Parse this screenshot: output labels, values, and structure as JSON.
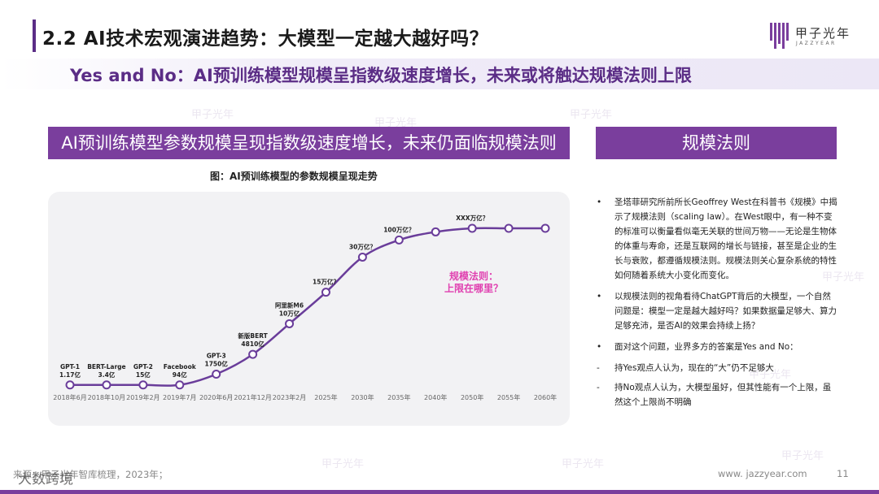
{
  "header": {
    "title": "2.2 AI技术宏观演进趋势：大模型一定越大越好吗？",
    "subtitle": "Yes and No：AI预训练模型规模呈指数级速度增长，未来或将触达规模法则上限"
  },
  "logo": {
    "cn": "甲子光年",
    "en": "JAZZYEAR"
  },
  "left_section": {
    "heading": "AI预训练模型参数规模呈现指数级速度增长，未来仍面临规模法则"
  },
  "right_section": {
    "heading": "规模法则"
  },
  "chart_data": {
    "type": "line",
    "title": "图：AI预训练模型的参数规模呈现走势",
    "categories": [
      "2018年6月",
      "2018年10月",
      "2019年2月",
      "2019年7月",
      "2020年6月",
      "2021年12月",
      "2023年2月",
      "2025年",
      "2030年",
      "2035年",
      "2040年",
      "2050年",
      "2055年",
      "2060年"
    ],
    "series": [
      {
        "values": [
          0.2,
          0.2,
          0.2,
          0.2,
          1.4,
          3.6,
          7.0,
          10.5,
          14.4,
          16.3,
          17.2,
          17.6,
          17.6,
          17.6
        ]
      }
    ],
    "point_labels": [
      [
        "GPT-1",
        "1.17亿"
      ],
      [
        "BERT-Large",
        "3.4亿"
      ],
      [
        "GPT-2",
        "15亿"
      ],
      [
        "Facebook",
        "94亿"
      ],
      [
        "GPT-3",
        "1750亿"
      ],
      [
        "新版BERT",
        "4810亿"
      ],
      [
        "阿里新M6",
        "10万亿"
      ],
      [
        "15万亿？"
      ],
      [
        "30万亿？"
      ],
      [
        "100万亿？"
      ],
      [],
      [
        "XXX万亿？"
      ],
      [],
      []
    ],
    "annotation": [
      "规模法则：",
      "上限在哪里？"
    ],
    "grid": false,
    "legend": "none",
    "color": "#6a3d9a",
    "annotation_color": "#e040b0"
  },
  "bullets": [
    {
      "mark": "•",
      "text": "圣塔菲研究所前所长Geoffrey West在科普书《规模》中揭示了规模法则（scaling law）。在West眼中，有一种不变的标准可以衡量看似毫无关联的世间万物——无论是生物体的体重与寿命，还是互联网的增长与链接，甚至是企业的生长与衰败，都遵循规模法则。规模法则关心复杂系统的特性如何随着系统大小变化而变化。"
    },
    {
      "mark": "•",
      "text": "以规模法则的视角看待ChatGPT背后的大模型，一个自然问题是：模型一定是越大越好吗？如果数据量足够大、算力足够充沛，是否AI的效果会持续上扬？"
    },
    {
      "mark": "•",
      "text": "面对这个问题，业界多方的答案是Yes and No："
    },
    {
      "mark": "-",
      "text": "持Yes观点人认为，现在的“大”仍不足够大"
    },
    {
      "mark": "-",
      "text": "持No观点人认为，大模型虽好，但其性能有一个上限，虽然这个上限尚不明确"
    }
  ],
  "footer": {
    "source": "来源：甲子光年智库梳理，2023年；",
    "url": "www. jazzyear.com",
    "page": "11",
    "brand": "大数跨境"
  }
}
